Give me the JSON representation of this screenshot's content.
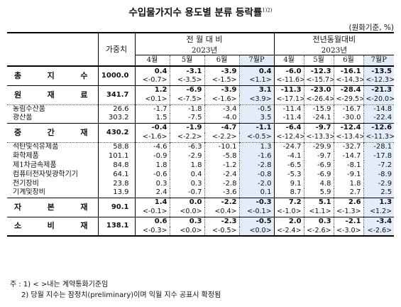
{
  "title": "수입물가지수 용도별 분류 등락률",
  "title_sup": "1)2)",
  "unit": "(원화기준, %)",
  "header": {
    "weight": "가중치",
    "mom_group": "전 월 대 비",
    "yoy_group": "전년동월대비",
    "year": "2023년",
    "months": [
      "4월",
      "5월",
      "6월",
      "7월P"
    ]
  },
  "rows": [
    {
      "label": "총 지 수",
      "weight": "1000.0",
      "mom": [
        "0.4",
        "-3.1",
        "-3.9",
        "0.4"
      ],
      "yoy": [
        "-6.0",
        "-12.3",
        "-16.1",
        "-13.5"
      ],
      "mom_c": [
        "<-0.7>",
        "<-3.5>",
        "<-1.5>",
        "<1.1>"
      ],
      "yoy_c": [
        "<-11.6>",
        "<-15.7>",
        "<-14.3>",
        "<-12.3>"
      ]
    },
    {
      "label": "원 재 료",
      "weight": "341.7",
      "mom": [
        "1.2",
        "-6.9",
        "-3.9",
        "3.1"
      ],
      "yoy": [
        "-11.3",
        "-23.0",
        "-28.4",
        "-21.3"
      ],
      "mom_c": [
        "<0.1>",
        "<-7.5>",
        "<-1.6>",
        "<3.9>"
      ],
      "yoy_c": [
        "<-17.1>",
        "<-26.4>",
        "<-29.5>",
        "<-20.0>"
      ]
    },
    {
      "label": "농림수산품",
      "weight": "26.6",
      "mom": [
        "-1.7",
        "-1.8",
        "-3.4",
        "-0.5"
      ],
      "yoy": [
        "-11.4",
        "-15.9",
        "-16.7",
        "-14.8"
      ]
    },
    {
      "label": "광산품",
      "weight": "303.2",
      "mom": [
        "1.5",
        "-7.5",
        "-4.0",
        "3.5"
      ],
      "yoy": [
        "-11.4",
        "-24.1",
        "-30.0",
        "-22.4"
      ]
    },
    {
      "label": "중 간 재",
      "weight": "430.2",
      "mom": [
        "-0.4",
        "-1.9",
        "-4.7",
        "-1.1"
      ],
      "yoy": [
        "-6.4",
        "-9.7",
        "-12.4",
        "-12.6"
      ],
      "mom_c": [
        "<-1.6>",
        "<-2.2>",
        "<-2.2>",
        "<-0.5>"
      ],
      "yoy_c": [
        "<-12.4>",
        "<-13.3>",
        "<-13.4>",
        "<-11.3>"
      ]
    },
    {
      "label": "석탄및석유제품",
      "weight": "58.8",
      "mom": [
        "-4.6",
        "-6.3",
        "-10.1",
        "1.3"
      ],
      "yoy": [
        "-24.7",
        "-29.9",
        "-32.7",
        "-28.1"
      ]
    },
    {
      "label": "화학제품",
      "weight": "101.1",
      "mom": [
        "-0.9",
        "-2.9",
        "-5.8",
        "-1.6"
      ],
      "yoy": [
        "-4.1",
        "-9.7",
        "-14.7",
        "-17.8"
      ]
    },
    {
      "label": "제1차금속제품",
      "weight": "84.8",
      "mom": [
        "1.8",
        "1.8",
        "-1.2",
        "-2.8"
      ],
      "yoy": [
        "-6.5",
        "-6.9",
        "-8.1",
        "-7.2"
      ]
    },
    {
      "label": "컴퓨터전자및광학기기",
      "weight": "64.1",
      "mom": [
        "-0.6",
        "0.4",
        "-2.4",
        "-0.8"
      ],
      "yoy": [
        "-5.3",
        "-6.9",
        "-9.1",
        "-8.9"
      ]
    },
    {
      "label": "전기장비",
      "weight": "23.8",
      "mom": [
        "0.3",
        "0.3",
        "-2.8",
        "-2.0"
      ],
      "yoy": [
        "9.1",
        "4.8",
        "1.8",
        "-2.9"
      ]
    },
    {
      "label": "기계및장비",
      "weight": "13.9",
      "mom": [
        "2.4",
        "-0.7",
        "-3.6",
        "0.1"
      ],
      "yoy": [
        "8.7",
        "5.9",
        "2.7",
        "2.5"
      ]
    },
    {
      "label": "자 본 재",
      "weight": "90.1",
      "mom": [
        "1.4",
        "0.0",
        "-2.2",
        "-0.3"
      ],
      "yoy": [
        "7.2",
        "5.1",
        "2.6",
        "1.3"
      ],
      "mom_c": [
        "<-0.1>",
        "<0.0>",
        "<0.4>",
        "<-0.1>"
      ],
      "yoy_c": [
        "<-1.0>",
        "<1.1>",
        "<-1.3>",
        "<1.2>"
      ]
    },
    {
      "label": "소 비 재",
      "weight": "138.1",
      "mom": [
        "0.6",
        "0.3",
        "-2.3",
        "-0.5"
      ],
      "yoy": [
        "2.0",
        "0.3",
        "-2.1",
        "-3.4"
      ],
      "mom_c": [
        "<-0.3>",
        "<0.0>",
        "<-0.5>",
        "<0.0>"
      ],
      "yoy_c": [
        "<-2.4>",
        "<-2.6>",
        "<-3.0>",
        "<-2.6>"
      ]
    }
  ],
  "notes": {
    "n1": "주 : 1) < >내는 계약통화기준임",
    "n2": "2) 당월 지수는 잠정치(preliminary)이며 익월 지수 공표시 확정됨"
  }
}
